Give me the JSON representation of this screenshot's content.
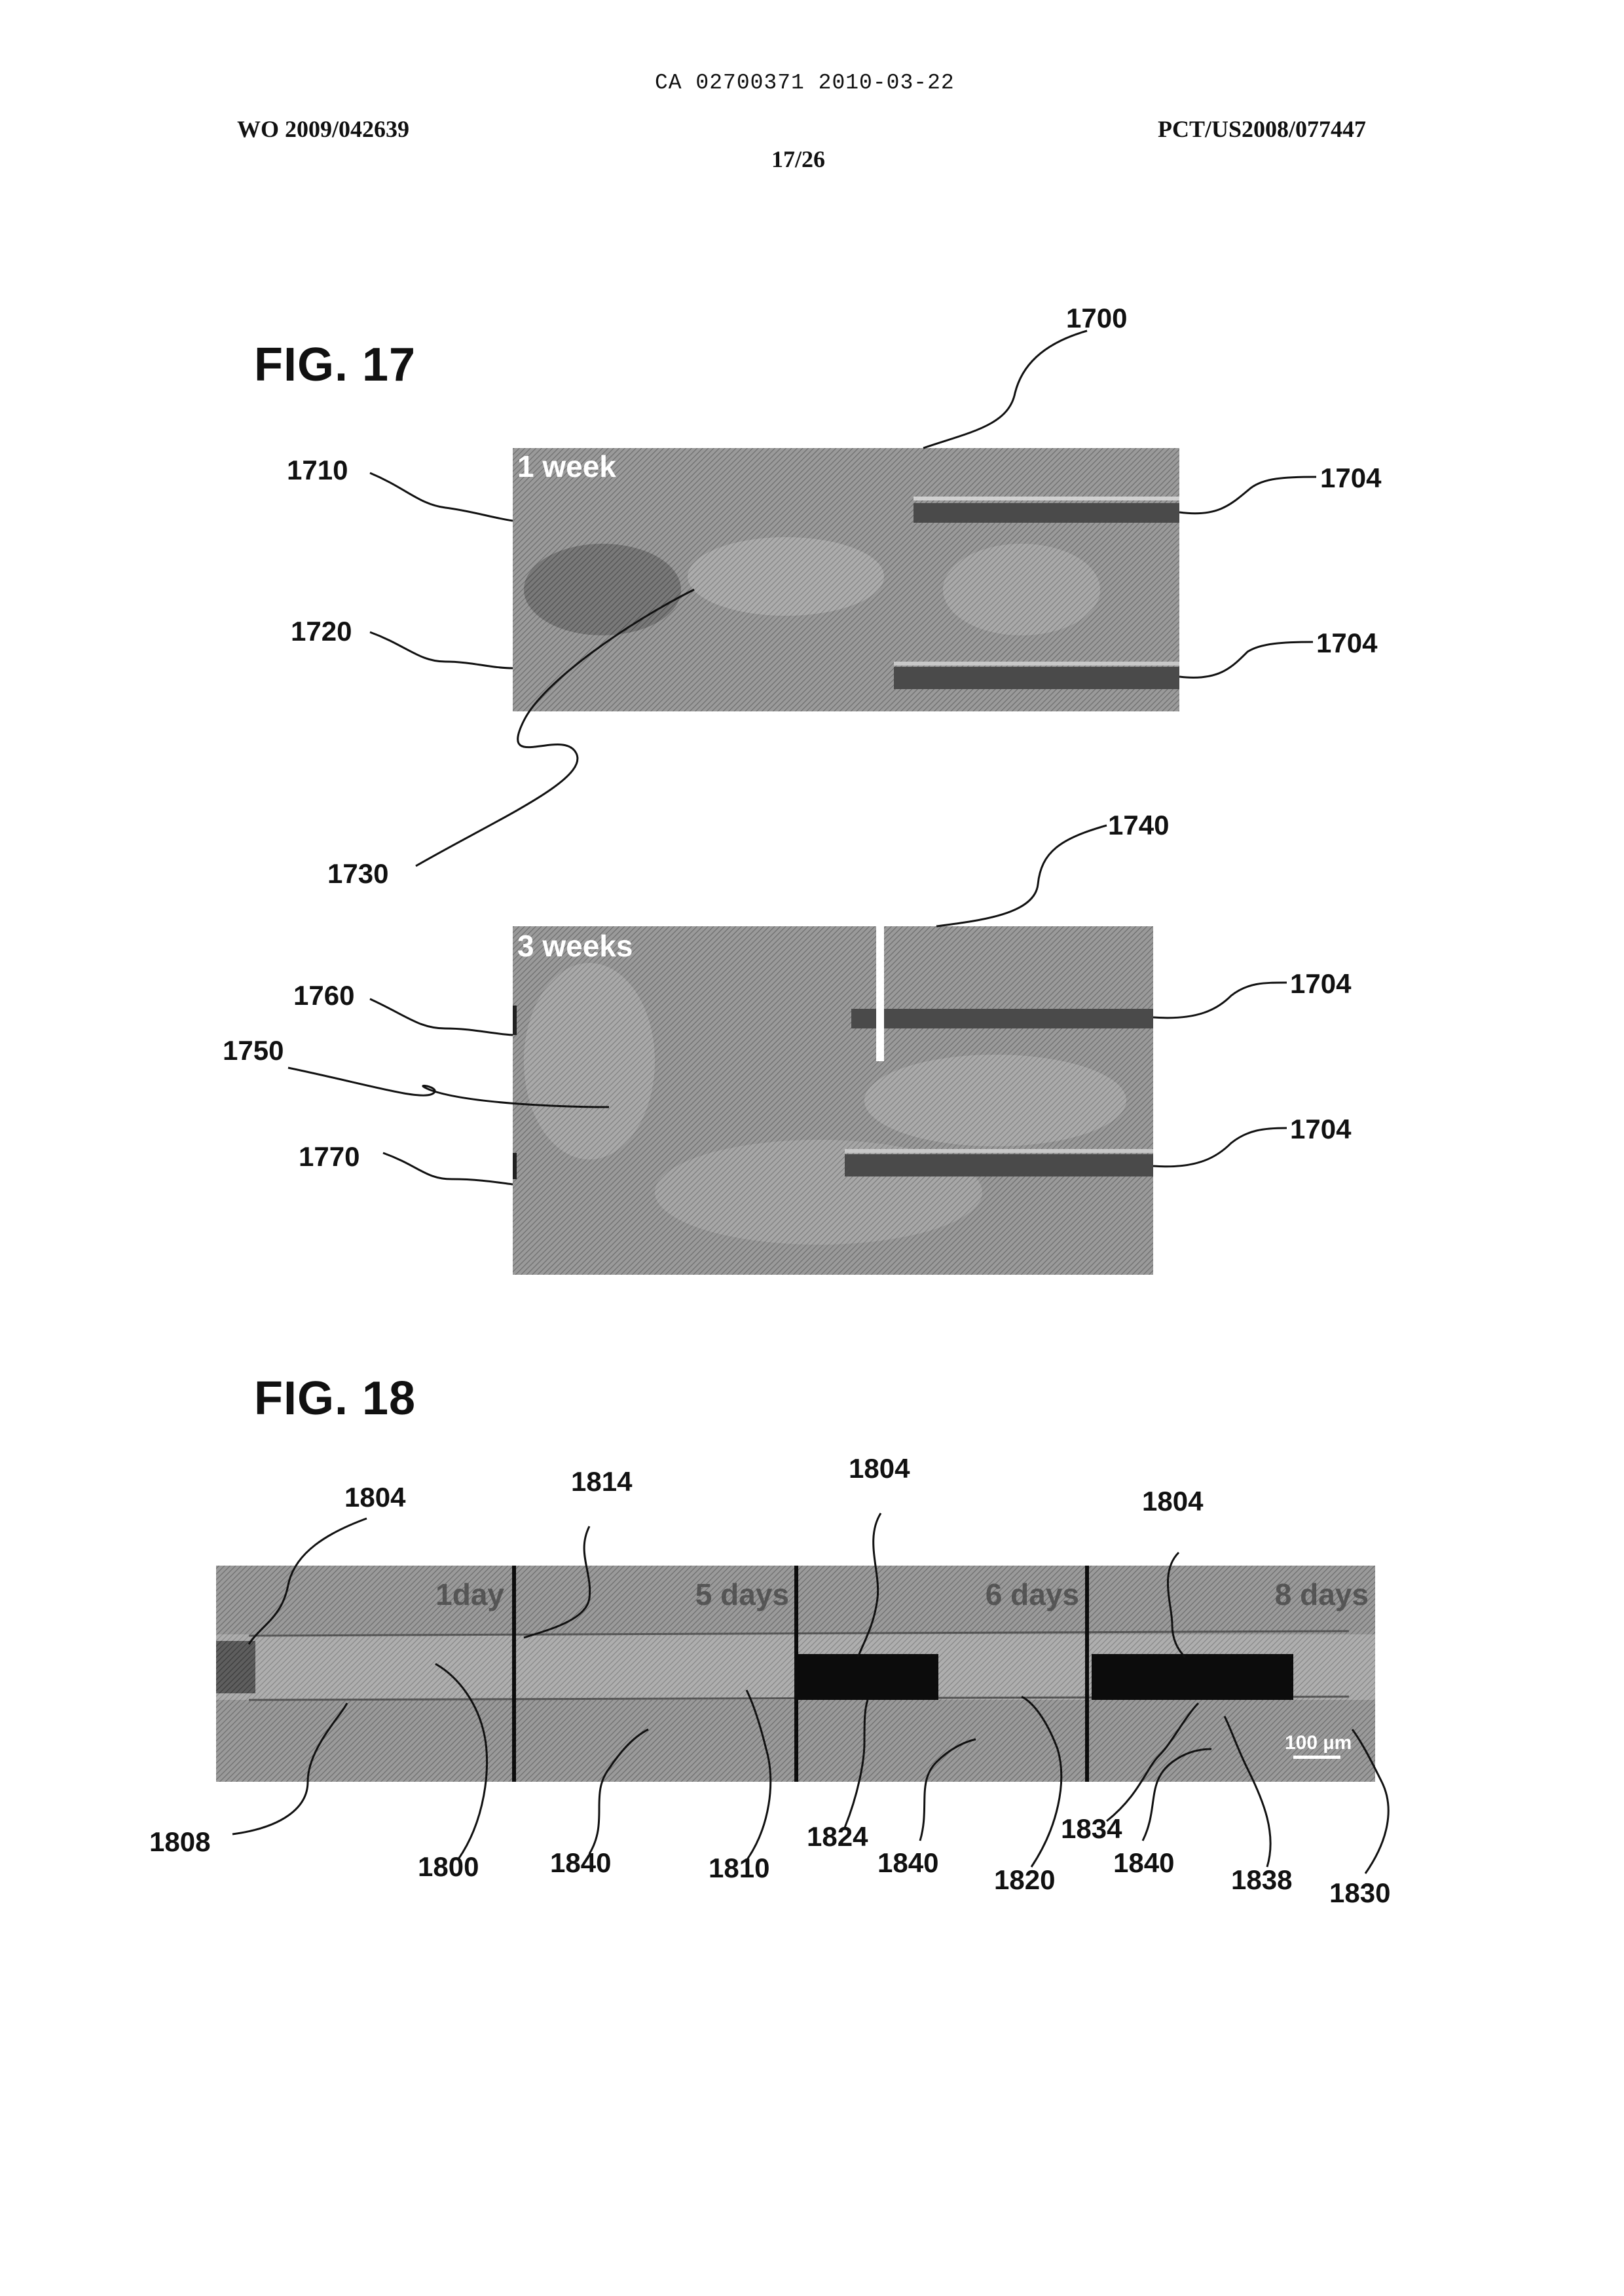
{
  "header": {
    "ca_number": "CA 02700371 2010-03-22",
    "wo_number": "WO 2009/042639",
    "pct_number": "PCT/US2008/077447",
    "sheet": "17/26"
  },
  "fig17": {
    "title": "FIG. 17",
    "panel_top_label": "1 week",
    "panel_bottom_label": "3 weeks",
    "refs": {
      "r1700": "1700",
      "r1704a": "1704",
      "r1704b": "1704",
      "r1710": "1710",
      "r1720": "1720",
      "r1730": "1730",
      "r1740": "1740",
      "r1704c": "1704",
      "r1704d": "1704",
      "r1760": "1760",
      "r1750": "1750",
      "r1770": "1770"
    }
  },
  "fig18": {
    "title": "FIG. 18",
    "panel_labels": [
      "1day",
      "5 days",
      "6 days",
      "8 days"
    ],
    "scale_bar": "100 µm",
    "refs": {
      "r1804a": "1804",
      "r1814": "1814",
      "r1804b": "1804",
      "r1804c": "1804",
      "r1808": "1808",
      "r1800": "1800",
      "r1840a": "1840",
      "r1810": "1810",
      "r1824": "1824",
      "r1840b": "1840",
      "r1820": "1820",
      "r1834": "1834",
      "r1840c": "1840",
      "r1838": "1838",
      "r1830": "1830"
    }
  }
}
